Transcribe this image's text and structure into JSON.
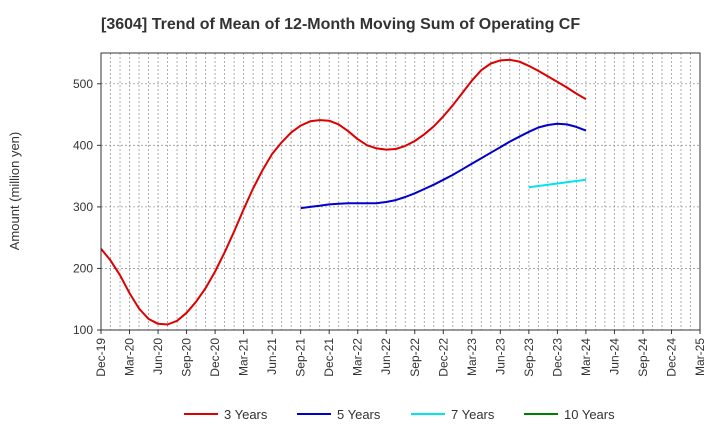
{
  "chart_data": {
    "type": "line",
    "title": "[3604]  Trend of Mean of 12-Month Moving Sum of Operating CF",
    "xlabel": "",
    "ylabel": "Amount (million yen)",
    "ylim": [
      100,
      550
    ],
    "yticks": [
      100,
      200,
      300,
      400,
      500
    ],
    "x_range_months": [
      0,
      63
    ],
    "x_ticks": [
      {
        "m": 0,
        "label": "Dec-19"
      },
      {
        "m": 3,
        "label": "Mar-20"
      },
      {
        "m": 6,
        "label": "Jun-20"
      },
      {
        "m": 9,
        "label": "Sep-20"
      },
      {
        "m": 12,
        "label": "Dec-20"
      },
      {
        "m": 15,
        "label": "Mar-21"
      },
      {
        "m": 18,
        "label": "Jun-21"
      },
      {
        "m": 21,
        "label": "Sep-21"
      },
      {
        "m": 24,
        "label": "Dec-21"
      },
      {
        "m": 27,
        "label": "Mar-22"
      },
      {
        "m": 30,
        "label": "Jun-22"
      },
      {
        "m": 33,
        "label": "Sep-22"
      },
      {
        "m": 36,
        "label": "Dec-22"
      },
      {
        "m": 39,
        "label": "Mar-23"
      },
      {
        "m": 42,
        "label": "Jun-23"
      },
      {
        "m": 45,
        "label": "Sep-23"
      },
      {
        "m": 48,
        "label": "Dec-23"
      },
      {
        "m": 51,
        "label": "Mar-24"
      },
      {
        "m": 54,
        "label": "Jun-24"
      },
      {
        "m": 57,
        "label": "Sep-24"
      },
      {
        "m": 60,
        "label": "Dec-24"
      },
      {
        "m": 63,
        "label": "Mar-25"
      }
    ],
    "grid": true,
    "legend_position": "bottom",
    "series": [
      {
        "name": "3 Years",
        "color": "#dd0000",
        "points": [
          [
            0,
            232
          ],
          [
            1,
            213
          ],
          [
            2,
            189
          ],
          [
            3,
            160
          ],
          [
            4,
            135
          ],
          [
            5,
            118
          ],
          [
            6,
            110
          ],
          [
            7,
            109
          ],
          [
            8,
            115
          ],
          [
            9,
            128
          ],
          [
            10,
            146
          ],
          [
            11,
            168
          ],
          [
            12,
            195
          ],
          [
            13,
            226
          ],
          [
            14,
            260
          ],
          [
            15,
            296
          ],
          [
            16,
            330
          ],
          [
            17,
            360
          ],
          [
            18,
            386
          ],
          [
            19,
            405
          ],
          [
            20,
            421
          ],
          [
            21,
            432
          ],
          [
            22,
            439
          ],
          [
            23,
            441
          ],
          [
            24,
            440
          ],
          [
            25,
            434
          ],
          [
            26,
            423
          ],
          [
            27,
            410
          ],
          [
            28,
            400
          ],
          [
            29,
            395
          ],
          [
            30,
            393
          ],
          [
            31,
            394
          ],
          [
            32,
            399
          ],
          [
            33,
            407
          ],
          [
            34,
            418
          ],
          [
            35,
            431
          ],
          [
            36,
            447
          ],
          [
            37,
            465
          ],
          [
            38,
            485
          ],
          [
            39,
            505
          ],
          [
            40,
            522
          ],
          [
            41,
            533
          ],
          [
            42,
            538
          ],
          [
            43,
            539
          ],
          [
            44,
            536
          ],
          [
            45,
            529
          ],
          [
            46,
            521
          ],
          [
            47,
            512
          ],
          [
            48,
            503
          ],
          [
            49,
            494
          ],
          [
            50,
            484
          ],
          [
            51,
            475
          ]
        ]
      },
      {
        "name": "5 Years",
        "color": "#0000cc",
        "points": [
          [
            21,
            298
          ],
          [
            22,
            300
          ],
          [
            23,
            302
          ],
          [
            24,
            304
          ],
          [
            25,
            305
          ],
          [
            26,
            306
          ],
          [
            27,
            306
          ],
          [
            28,
            306
          ],
          [
            29,
            306
          ],
          [
            30,
            308
          ],
          [
            31,
            311
          ],
          [
            32,
            316
          ],
          [
            33,
            322
          ],
          [
            34,
            329
          ],
          [
            35,
            336
          ],
          [
            36,
            344
          ],
          [
            37,
            352
          ],
          [
            38,
            361
          ],
          [
            39,
            370
          ],
          [
            40,
            379
          ],
          [
            41,
            388
          ],
          [
            42,
            397
          ],
          [
            43,
            406
          ],
          [
            44,
            414
          ],
          [
            45,
            422
          ],
          [
            46,
            429
          ],
          [
            47,
            433
          ],
          [
            48,
            435
          ],
          [
            49,
            434
          ],
          [
            50,
            430
          ],
          [
            51,
            424
          ]
        ]
      },
      {
        "name": "7 Years",
        "color": "#00e5ee",
        "points": [
          [
            45,
            332
          ],
          [
            46,
            334
          ],
          [
            47,
            336
          ],
          [
            48,
            338
          ],
          [
            49,
            340
          ],
          [
            50,
            342
          ],
          [
            51,
            344
          ]
        ]
      },
      {
        "name": "10 Years",
        "color": "#008000",
        "points": []
      }
    ]
  }
}
